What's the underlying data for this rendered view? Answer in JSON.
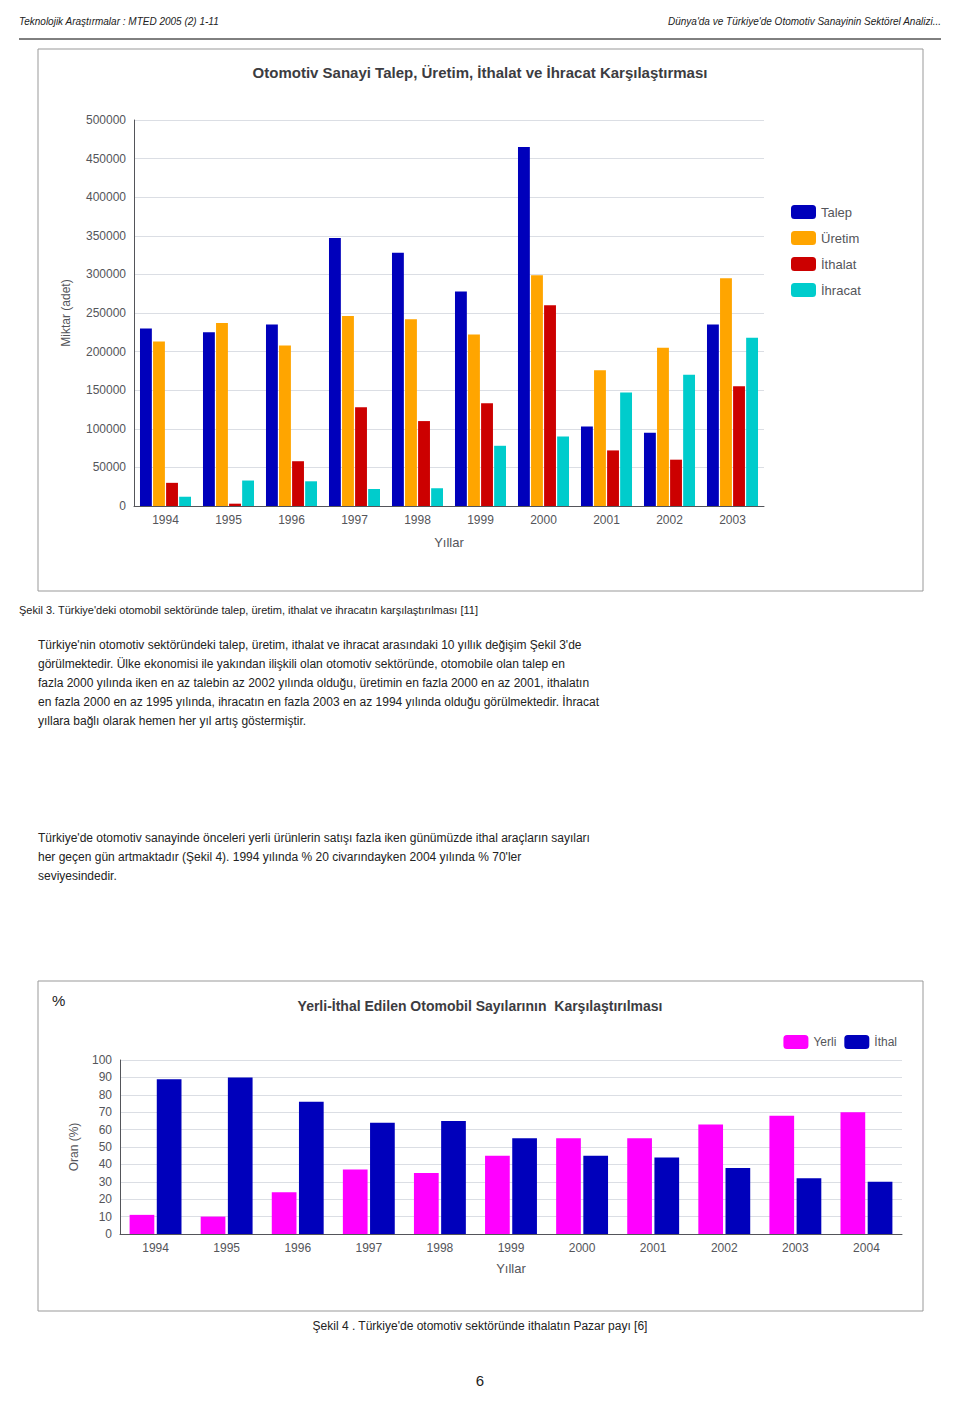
{
  "chart_data": [
    {
      "type": "bar",
      "title": "Otomotiv Sanayi Talep, Üretim, İthalat ve İhracat Karşılaştırması",
      "categories": [
        "1994",
        "1995",
        "1996",
        "1997",
        "1998",
        "1999",
        "2000",
        "2001",
        "2002",
        "2003"
      ],
      "series": [
        {
          "name": "Talep",
          "color": "#0000BB",
          "values": [
            230000,
            225000,
            235000,
            347000,
            328000,
            278000,
            465000,
            103000,
            95000,
            235000
          ]
        },
        {
          "name": "Üretim",
          "color": "#FFA500",
          "values": [
            213000,
            237000,
            208000,
            246000,
            242000,
            222000,
            299000,
            176000,
            205000,
            295000
          ]
        },
        {
          "name": "İthalat",
          "color": "#CC0000",
          "values": [
            30000,
            3000,
            58000,
            128000,
            110000,
            133000,
            260000,
            72000,
            60000,
            155000
          ]
        },
        {
          "name": "İhracat",
          "color": "#00CCCC",
          "values": [
            12000,
            33000,
            32000,
            22000,
            23000,
            78000,
            90000,
            147000,
            170000,
            218000
          ]
        }
      ],
      "xlabel": "Yıllar",
      "ylabel": "Miktar (adet)",
      "ylim": [
        0,
        500000
      ],
      "yticks": [
        0,
        50000,
        100000,
        150000,
        200000,
        250000,
        300000,
        350000,
        400000,
        450000,
        500000
      ],
      "grid": true,
      "legend": "right",
      "annotations": [
        "Teknolojik Araştırmalar : MTED 2005 (2) 1-11",
        "Dünya'da ve Türkiye'de Otomotiv Sanayinin Sektörel Analizi...",
        "Şekil 3. Türkiye'deki otomobil sektöründe talep, üretim, ithalat ve ihracatın karşılaştırılması [11]",
        "Türkiye'nin otomotiv sektöründeki talep, üretim, ithalat ve ihracat arasındaki 10 yıllık değişim Şekil 3'de",
        "görülmektedir. Ülke ekonomisi ile yakından ilişkili olan otomotiv sektöründe, otomobile olan talep en",
        "fazla 2000 yılında iken en az talebin az 2002 yılında olduğu, üretimin en fazla 2000 en az 2001, ithalatın",
        "en fazla 2000 en az 1995 yılında, ihracatın en fazla 2003 en az 1994 yılında olduğu görülmektedir. İhracat",
        "yıllara bağlı olarak hemen her yıl artış göstermiştir."
      ]
    },
    {
      "type": "bar",
      "title": "Yerli-İthal Edilen Otomobil Sayılarının  Karşılaştırılması",
      "categories": [
        "1994",
        "1995",
        "1996",
        "1997",
        "1998",
        "1999",
        "2000",
        "2001",
        "2002",
        "2003",
        "2004"
      ],
      "series": [
        {
          "name": "Yerli",
          "color": "#FF00FF",
          "values": [
            11,
            10,
            24,
            37,
            35,
            45,
            55,
            55,
            63,
            68,
            70
          ]
        },
        {
          "name": "İthal",
          "color": "#0000BB",
          "values": [
            89,
            90,
            76,
            64,
            65,
            55,
            45,
            44,
            38,
            32,
            30
          ]
        }
      ],
      "xlabel": "Yıllar",
      "ylabel": "Oran (%)",
      "ylim": [
        0,
        100
      ],
      "yticks": [
        0,
        10,
        20,
        30,
        40,
        50,
        60,
        70,
        80,
        90,
        100
      ],
      "grid": true,
      "legend": "top",
      "annotations": [
        "%",
        "Türkiye'de otomotiv sanayinde önceleri yerli ürünlerin satışı fazla iken günümüzde ithal araçların sayıları",
        "her geçen gün artmaktadır (Şekil 4). 1994 yılında % 20 civarındayken 2004 yılında % 70'ler",
        "seviyesindedir.",
        "Şekil 4 . Türkiye'de otomotiv sektöründe ithalatın Pazar payı [6]",
        "6"
      ]
    }
  ]
}
